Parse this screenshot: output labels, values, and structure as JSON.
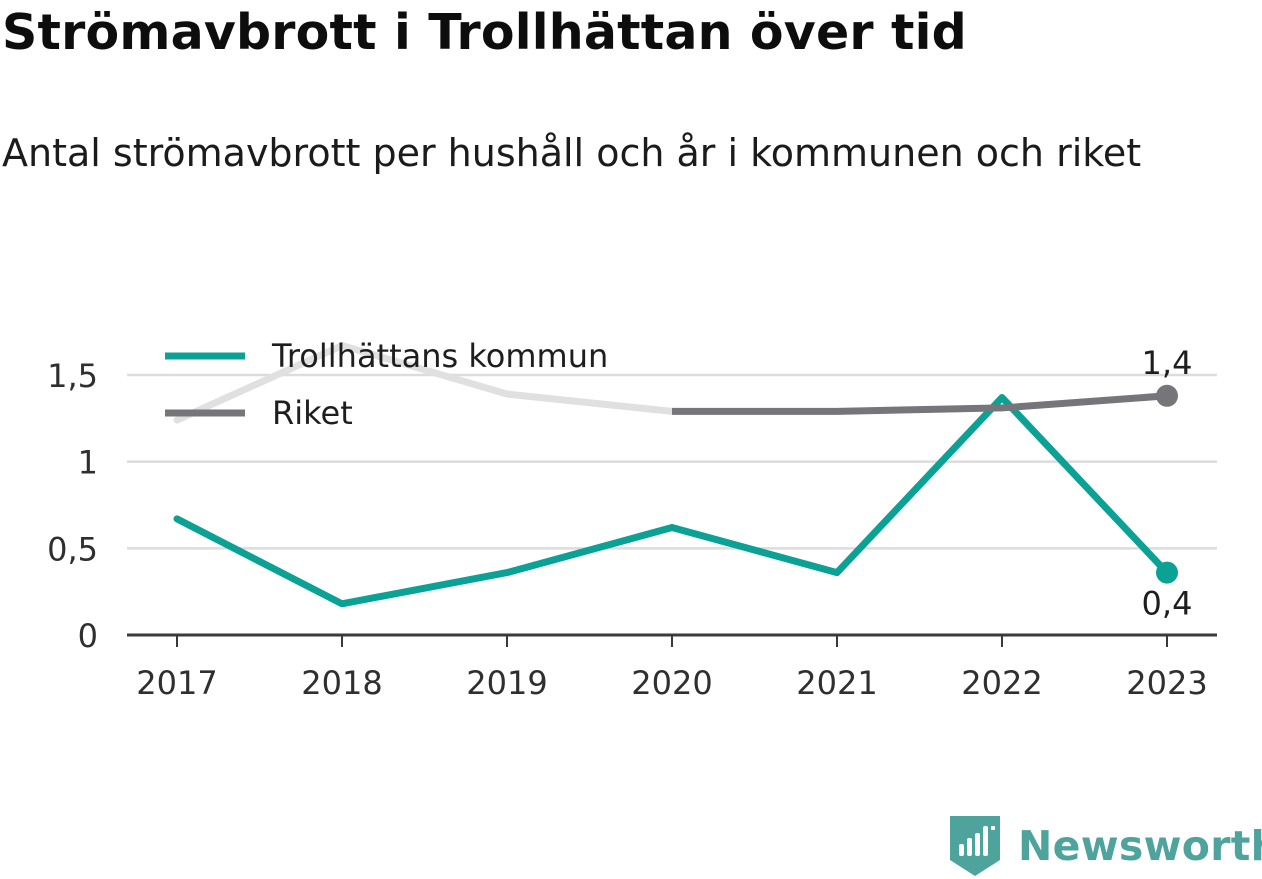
{
  "header": {
    "title": "Strömavbrott i Trollhättan över tid",
    "subtitle": "Antal strömavbrott per hushåll och år i kommunen och riket"
  },
  "brand": {
    "name": "Newsworthy",
    "icon": "newsworthy-logo-icon",
    "color": "#4fa39d"
  },
  "chart_data": {
    "type": "line",
    "title": "Strömavbrott i Trollhättan över tid",
    "subtitle": "Antal strömavbrott per hushåll och år i kommunen och riket",
    "xlabel": "",
    "ylabel": "",
    "x": [
      "2017",
      "2018",
      "2019",
      "2020",
      "2021",
      "2022",
      "2023"
    ],
    "ylim": [
      0,
      1.7
    ],
    "yticks": [
      0,
      0.5,
      1,
      1.5
    ],
    "ytick_labels": [
      "0",
      "0,5",
      "1",
      "1,5"
    ],
    "grid": true,
    "legend": "top-left",
    "series": [
      {
        "name": "Trollhättans kommun",
        "color": "#0ba195",
        "values": [
          0.67,
          0.18,
          0.36,
          0.62,
          0.36,
          1.37,
          0.36
        ],
        "end_label": "0,4",
        "end_label_position": "below"
      },
      {
        "name": "Riket",
        "color": "#76757a",
        "faded_color": "#e0e0e0",
        "faded_until_index": 3,
        "values": [
          1.24,
          1.67,
          1.39,
          1.29,
          1.29,
          1.31,
          1.38
        ],
        "end_label": "1,4",
        "end_label_position": "above"
      }
    ]
  }
}
